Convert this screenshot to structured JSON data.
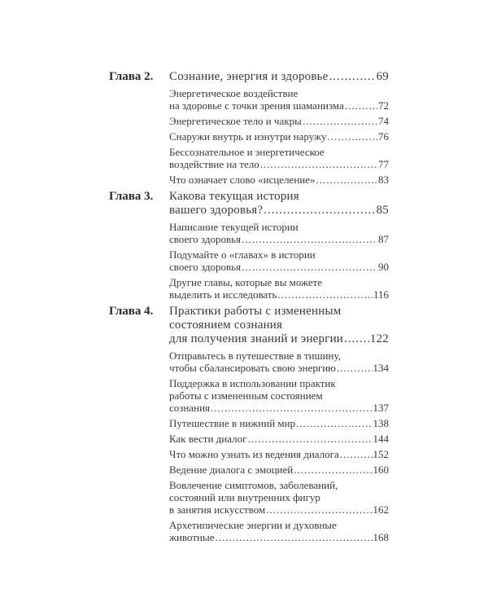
{
  "chapters": [
    {
      "label": "Глава 2.",
      "title": {
        "lines": [],
        "last": "Сознание, энергия и здоровье",
        "page": "69"
      },
      "entries": [
        {
          "lines": [
            "Энергетическое воздействие"
          ],
          "last": "на здоровье с точки зрения шаманизма",
          "page": "72"
        },
        {
          "lines": [],
          "last": "Энергетическое тело и чакры",
          "page": "74"
        },
        {
          "lines": [],
          "last": "Снаружи внутрь и изнутри наружу",
          "page": "76"
        },
        {
          "lines": [
            "Бессознательное и энергетическое"
          ],
          "last": "воздействие на тело",
          "page": "77"
        },
        {
          "lines": [],
          "last": "Что означает слово «исцеление»",
          "page": "83"
        }
      ]
    },
    {
      "label": "Глава 3.",
      "title": {
        "lines": [
          "Какова текущая история"
        ],
        "last": "вашего здоровья?",
        "page": "85"
      },
      "entries": [
        {
          "lines": [
            "Написание текущей истории"
          ],
          "last": "своего здоровья",
          "page": "87"
        },
        {
          "lines": [
            "Подумайте о «главах» в истории"
          ],
          "last": "своего здоровья",
          "page": "90"
        },
        {
          "lines": [
            "Другие главы, которые вы можете"
          ],
          "last": "выделить и исследовать",
          "page": "116"
        }
      ]
    },
    {
      "label": "Глава 4.",
      "title": {
        "lines": [
          "Практики работы с измененным",
          "состоянием сознания"
        ],
        "last": "для получения знаний и энергии",
        "page": "122"
      },
      "entries": [
        {
          "lines": [
            "Отправьтесь в путешествие в тишину,"
          ],
          "last": "чтобы сбалансировать свою энергию",
          "page": "134"
        },
        {
          "lines": [
            "Поддержка в использовании практик",
            "работы с измененным состоянием"
          ],
          "last": "сознания",
          "page": "137"
        },
        {
          "lines": [],
          "last": "Путешествие в нижний мир",
          "page": "138"
        },
        {
          "lines": [],
          "last": "Как вести диалог",
          "page": "144"
        },
        {
          "lines": [],
          "last": "Что можно узнать из ведения диалога",
          "page": "152"
        },
        {
          "lines": [],
          "last": "Ведение диалога с эмоцией",
          "page": "160"
        },
        {
          "lines": [
            "Вовлечение симптомов, заболеваний,",
            "состояний или внутренних фигур"
          ],
          "last": "в занятия искусством",
          "page": "162"
        },
        {
          "lines": [
            "Архетипические энергии и духовные"
          ],
          "last": "животные",
          "page": "168"
        }
      ]
    }
  ]
}
